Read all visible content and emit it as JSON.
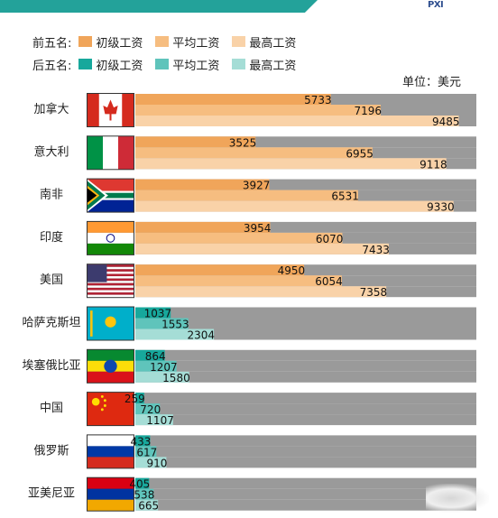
{
  "legend": {
    "top_title": "前五名:",
    "bottom_title": "后五名:",
    "items": [
      "初级工资",
      "平均工资",
      "最高工资"
    ],
    "top_colors": [
      "#f0a55a",
      "#f6bd80",
      "#f9d2a8"
    ],
    "bottom_colors": [
      "#17a89c",
      "#5fc4bb",
      "#a5ddd6"
    ]
  },
  "unit_label": "单位：美元",
  "chart_data": {
    "type": "bar",
    "orientation": "horizontal",
    "categories": [
      "加拿大",
      "意大利",
      "南非",
      "印度",
      "美国",
      "哈萨克斯坦",
      "埃塞俄比亚",
      "中国",
      "俄罗斯",
      "亚美尼亚"
    ],
    "series": [
      {
        "name": "初级工资",
        "values": [
          5733,
          3525,
          3927,
          3954,
          4950,
          1037,
          864,
          259,
          433,
          405
        ]
      },
      {
        "name": "平均工资",
        "values": [
          7196,
          6955,
          6531,
          6070,
          6054,
          1553,
          1207,
          720,
          617,
          538
        ]
      },
      {
        "name": "最高工资",
        "values": [
          9485,
          9118,
          9330,
          7433,
          7358,
          2304,
          1580,
          1107,
          910,
          665
        ]
      }
    ],
    "groups": {
      "前五名": [
        0,
        1,
        2,
        3,
        4
      ],
      "后五名": [
        5,
        6,
        7,
        8,
        9
      ]
    },
    "xlim": [
      0,
      10000
    ],
    "background_bar_color": "#9a9a9a",
    "flags": [
      "canada-flag-icon",
      "italy-flag-icon",
      "south-africa-flag-icon",
      "india-flag-icon",
      "usa-flag-icon",
      "kazakhstan-flag-icon",
      "ethiopia-flag-icon",
      "china-flag-icon",
      "russia-flag-icon",
      "armenia-flag-icon"
    ]
  }
}
